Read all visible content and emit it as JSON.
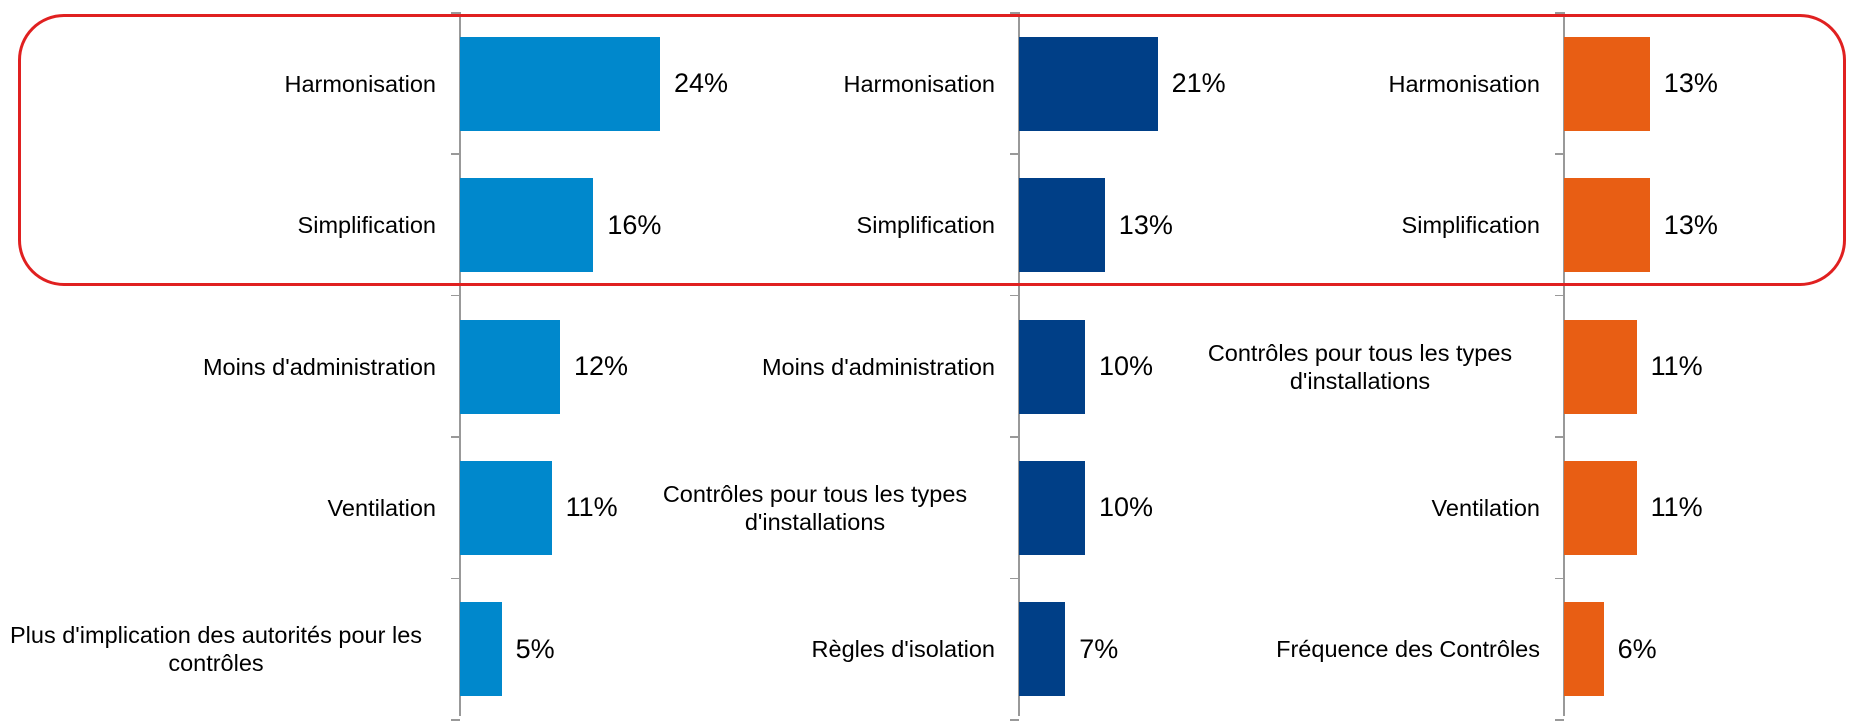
{
  "chart_data": [
    {
      "type": "bar",
      "orientation": "horizontal",
      "color": "#0088cc",
      "xlim": [
        0,
        30
      ],
      "categories": [
        "Harmonisation",
        "Simplification",
        "Moins d'administration",
        "Ventilation",
        "Plus d'implication des autorités pour les contrôles"
      ],
      "values": [
        24,
        16,
        12,
        11,
        5
      ],
      "value_labels": [
        "24%",
        "16%",
        "12%",
        "11%",
        "5%"
      ]
    },
    {
      "type": "bar",
      "orientation": "horizontal",
      "color": "#003f87",
      "xlim": [
        0,
        30
      ],
      "categories": [
        "Harmonisation",
        "Simplification",
        "Moins d'administration",
        "Contrôles pour tous les types d'installations",
        "Règles d'isolation"
      ],
      "values": [
        21,
        13,
        10,
        10,
        7
      ],
      "value_labels": [
        "21%",
        "13%",
        "10%",
        "10%",
        "7%"
      ]
    },
    {
      "type": "bar",
      "orientation": "horizontal",
      "color": "#e85e14",
      "xlim": [
        0,
        30
      ],
      "categories": [
        "Harmonisation",
        "Simplification",
        "Contrôles pour tous les types d'installations",
        "Ventilation",
        "Fréquence des Contrôles"
      ],
      "values": [
        13,
        13,
        11,
        11,
        6
      ],
      "value_labels": [
        "13%",
        "13%",
        "11%",
        "11%",
        "6%"
      ]
    }
  ]
}
